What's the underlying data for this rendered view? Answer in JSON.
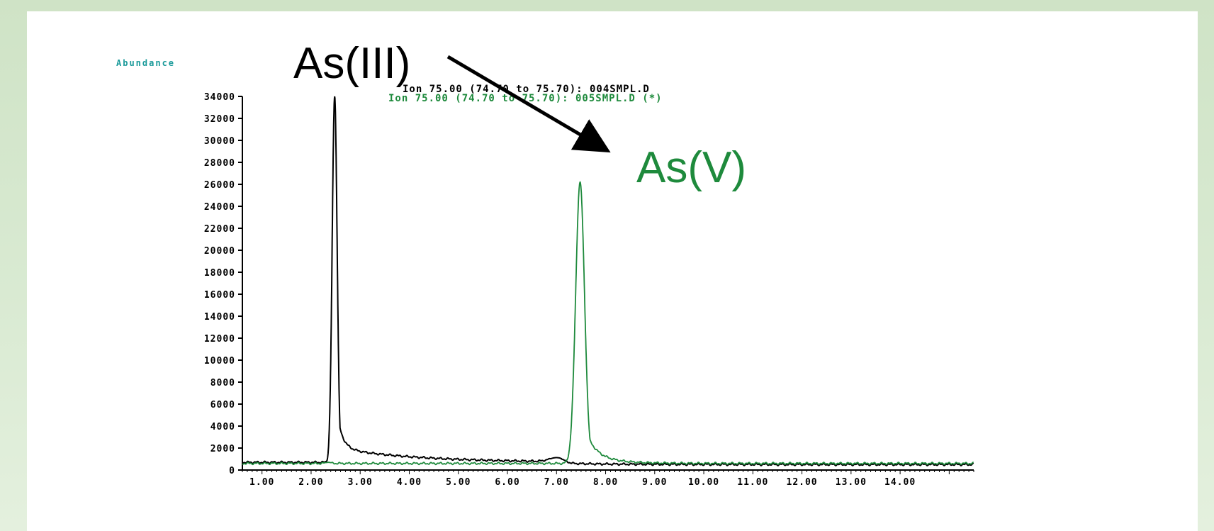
{
  "chart_data": {
    "type": "line",
    "ylabel": "Abundance",
    "yticks": [
      0,
      2000,
      4000,
      6000,
      8000,
      10000,
      12000,
      14000,
      16000,
      18000,
      20000,
      22000,
      24000,
      26000,
      28000,
      30000,
      32000,
      34000
    ],
    "ylim": [
      0,
      34000
    ],
    "xlim": [
      0.6,
      15.5
    ],
    "xtick_labels": [
      "1.00",
      "2.00",
      "3.00",
      "4.00",
      "5.00",
      "6.00",
      "7.00",
      "8.00",
      "9.00",
      "10.00",
      "11.00",
      "12.00",
      "13.00",
      "14.00"
    ],
    "xtick_values": [
      1,
      2,
      3,
      4,
      5,
      6,
      7,
      8,
      9,
      10,
      11,
      12,
      13,
      14
    ],
    "grid": false,
    "series": [
      {
        "name": "Ion 75.00 (74.70 to 75.70): 004SMPL.D",
        "color": "#000000",
        "peaks": [
          {
            "x": 2.48,
            "y": 34000,
            "width": 0.05,
            "tail": 1.6
          },
          {
            "x": 7.0,
            "y": 1050,
            "width": 0.15,
            "tail": 0.3
          }
        ],
        "baseline": 700,
        "baseline_after": 500,
        "baseline_step_x": 7.1
      },
      {
        "name": "Ion 75.00 (74.70 to 75.70): 005SMPL.D (*)",
        "color": "#1e8a3c",
        "peaks": [
          {
            "x": 7.48,
            "y": 26200,
            "width": 0.09,
            "tail": 0.5
          },
          {
            "x": 2.35,
            "y": 700,
            "width": 0.06,
            "tail": 0.2
          }
        ],
        "baseline": 600,
        "baseline_after": 600,
        "baseline_step_x": 0
      }
    ],
    "annotations": [
      {
        "text": "As(III)",
        "color": "#000000"
      },
      {
        "text": "As(V)",
        "color": "#1e8a3c"
      }
    ]
  }
}
